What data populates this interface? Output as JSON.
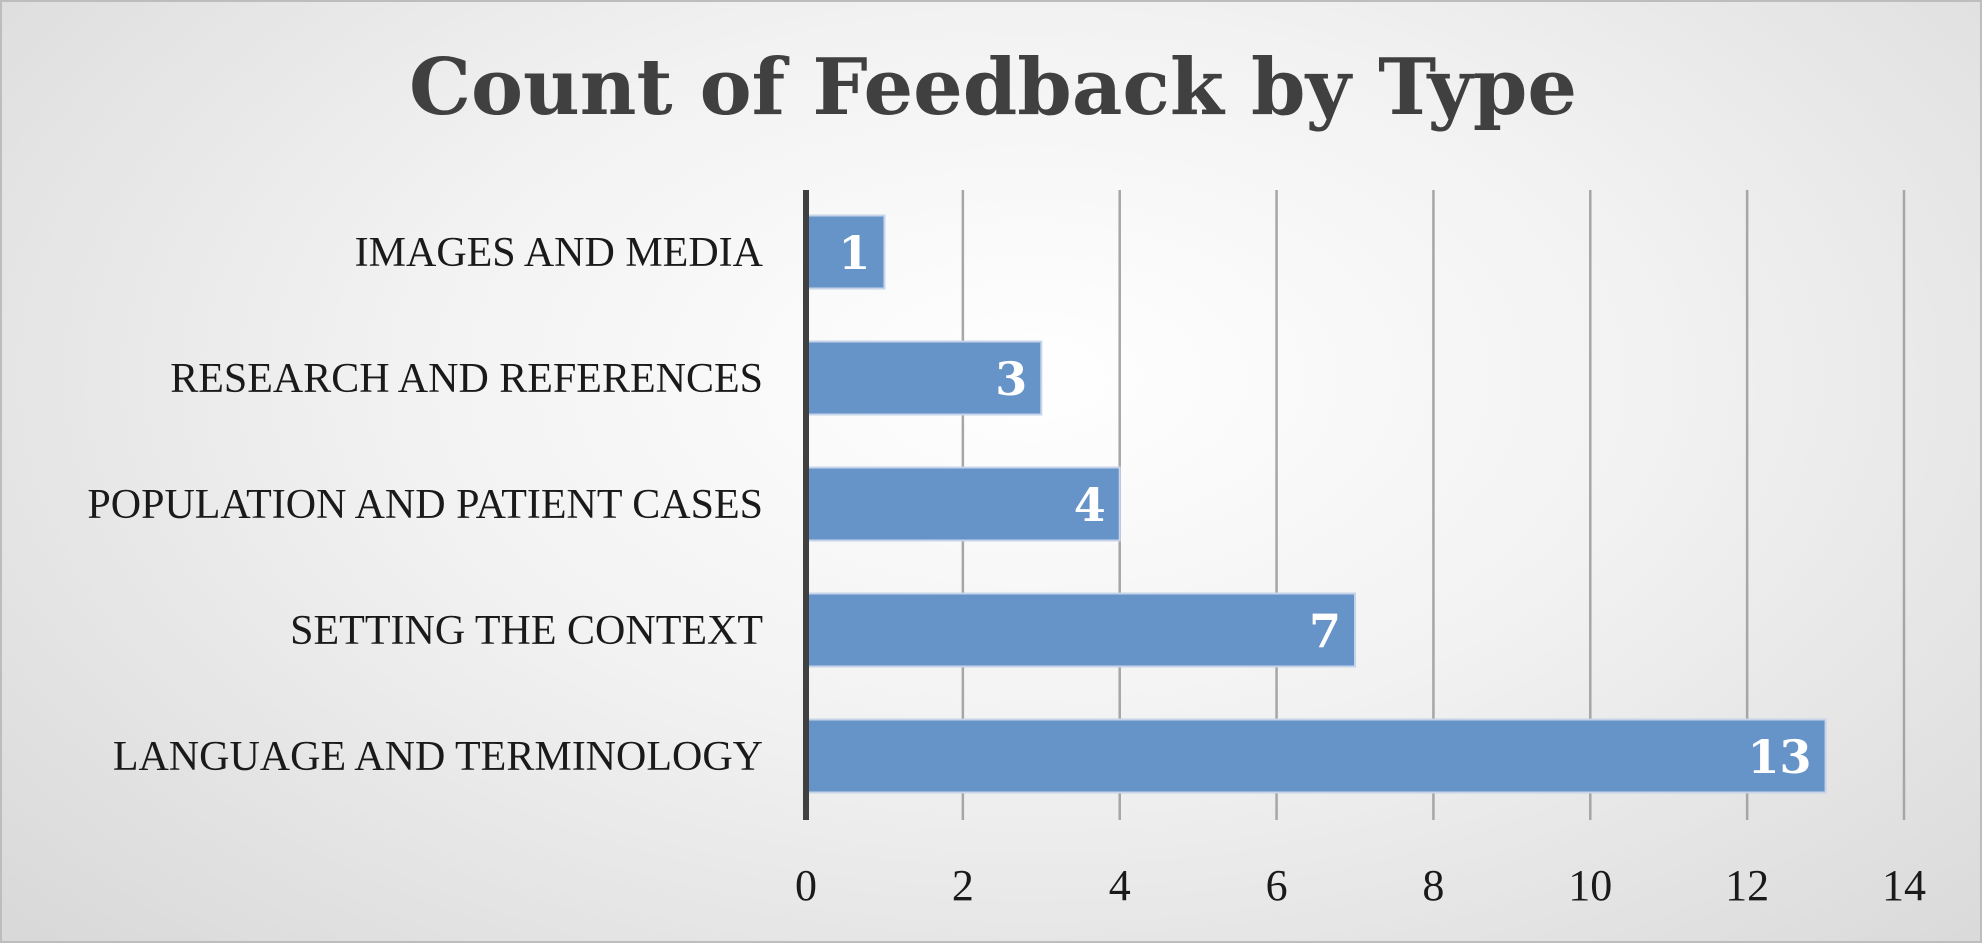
{
  "chart_data": {
    "type": "bar",
    "orientation": "horizontal",
    "title": "Count of Feedback by Type",
    "categories": [
      "IMAGES AND MEDIA",
      "RESEARCH AND REFERENCES",
      "POPULATION AND PATIENT CASES",
      "SETTING THE CONTEXT",
      "LANGUAGE AND TERMINOLOGY"
    ],
    "values": [
      1,
      3,
      4,
      7,
      13
    ],
    "xlim": [
      0,
      14
    ],
    "xticks": [
      0,
      2,
      4,
      6,
      8,
      10,
      12,
      14
    ],
    "xlabel": "",
    "ylabel": "",
    "grid": true,
    "legend": "none",
    "data_labels": "inside-end",
    "bar_color": "#6794c8",
    "bar_edge_color": "#c6d4ea",
    "axis_color": "#404040",
    "title_color": "#404040"
  }
}
